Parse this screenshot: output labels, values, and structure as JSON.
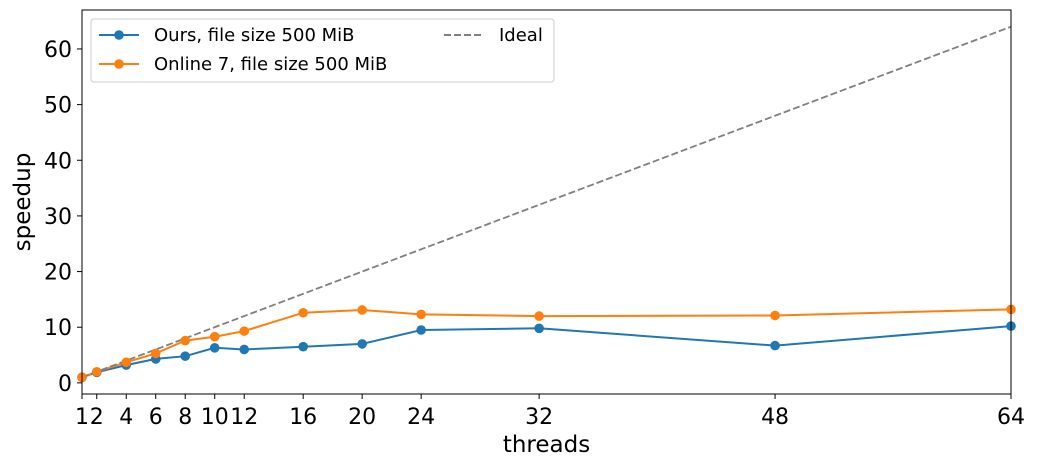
{
  "chart_data": {
    "type": "line",
    "xlabel": "threads",
    "ylabel": "speedup",
    "xlim": [
      1,
      64
    ],
    "ylim": [
      -2,
      67
    ],
    "x_ticks": [
      1,
      2,
      4,
      6,
      8,
      10,
      12,
      16,
      20,
      24,
      32,
      48,
      64
    ],
    "y_ticks": [
      0,
      10,
      20,
      30,
      40,
      50,
      60
    ],
    "grid": false,
    "legend_position": "top-left",
    "series": [
      {
        "name": "Ours, file size 500 MiB",
        "color": "#1f77b4",
        "style": "solid-marker",
        "x": [
          1,
          2,
          4,
          6,
          8,
          10,
          12,
          16,
          20,
          24,
          32,
          48,
          64
        ],
        "values": [
          1.0,
          1.9,
          3.2,
          4.3,
          4.8,
          6.3,
          6.0,
          6.5,
          7.0,
          9.5,
          9.8,
          6.7,
          10.2
        ]
      },
      {
        "name": "Online 7, file size 500 MiB",
        "color": "#ff7f0e",
        "style": "solid-marker",
        "x": [
          1,
          2,
          4,
          6,
          8,
          10,
          12,
          16,
          20,
          24,
          32,
          48,
          64
        ],
        "values": [
          1.0,
          2.0,
          3.7,
          5.3,
          7.6,
          8.3,
          9.3,
          12.6,
          13.1,
          12.3,
          12.0,
          12.1,
          13.2
        ]
      },
      {
        "name": "Ideal",
        "color": "#7f7f7f",
        "style": "dashed",
        "x": [
          1,
          64
        ],
        "values": [
          1,
          64
        ]
      }
    ]
  }
}
